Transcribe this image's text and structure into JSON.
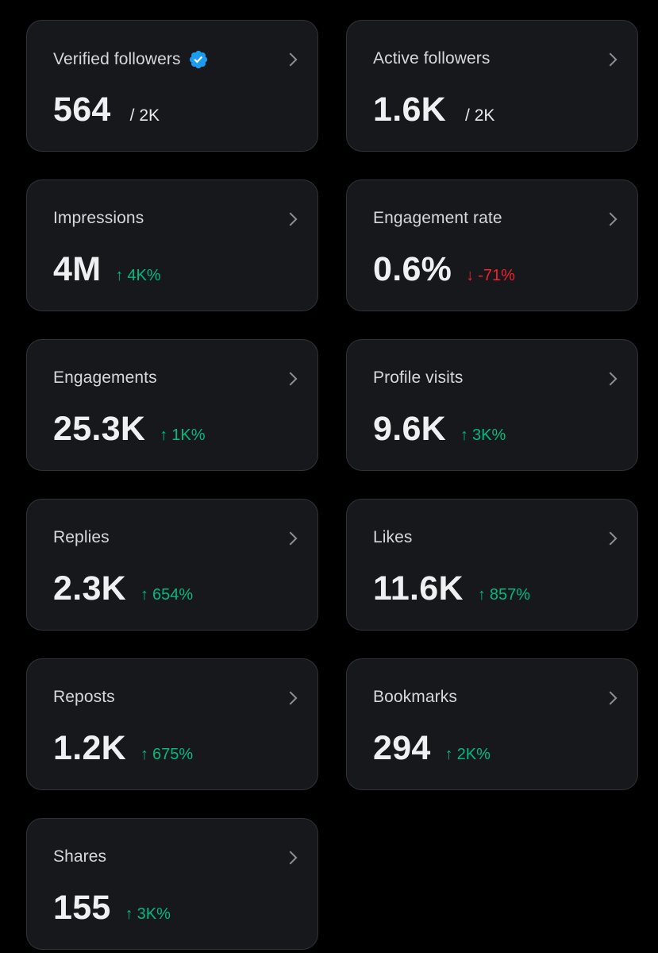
{
  "colors": {
    "background": "#000000",
    "card": "#16181c",
    "card_border": "#2f3336",
    "positive": "#00ba7c",
    "negative": "#f4212e",
    "verified_badge": "#1d9bf0"
  },
  "cards": [
    {
      "label": "Verified followers",
      "value": "564",
      "denominator": "/ 2K",
      "verified_icon": "verified-badge-icon"
    },
    {
      "label": "Active followers",
      "value": "1.6K",
      "denominator": "/ 2K"
    },
    {
      "label": "Impressions",
      "value": "4M",
      "change": "4K%",
      "direction": "up",
      "arrow": "↑"
    },
    {
      "label": "Engagement rate",
      "value": "0.6%",
      "change": "-71%",
      "direction": "down",
      "arrow": "↓"
    },
    {
      "label": "Engagements",
      "value": "25.3K",
      "change": "1K%",
      "direction": "up",
      "arrow": "↑"
    },
    {
      "label": "Profile visits",
      "value": "9.6K",
      "change": "3K%",
      "direction": "up",
      "arrow": "↑"
    },
    {
      "label": "Replies",
      "value": "2.3K",
      "change": "654%",
      "direction": "up",
      "arrow": "↑"
    },
    {
      "label": "Likes",
      "value": "11.6K",
      "change": "857%",
      "direction": "up",
      "arrow": "↑"
    },
    {
      "label": "Reposts",
      "value": "1.2K",
      "change": "675%",
      "direction": "up",
      "arrow": "↑"
    },
    {
      "label": "Bookmarks",
      "value": "294",
      "change": "2K%",
      "direction": "up",
      "arrow": "↑"
    },
    {
      "label": "Shares",
      "value": "155",
      "change": "3K%",
      "direction": "up",
      "arrow": "↑"
    }
  ]
}
